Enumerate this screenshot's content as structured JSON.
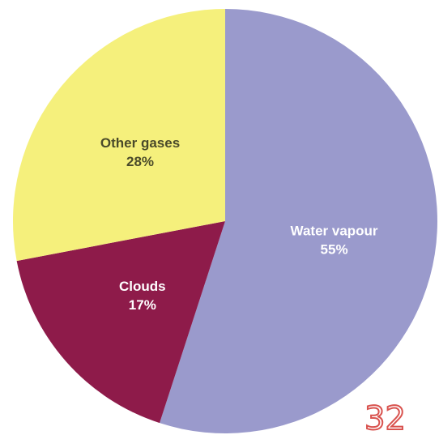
{
  "chart_data": {
    "type": "pie",
    "title": "",
    "slices": [
      {
        "label": "Water vapour",
        "value": 55,
        "value_label": "55%",
        "color": "#9a9acc",
        "text_color": "#ffffff"
      },
      {
        "label": "Clouds",
        "value": 17,
        "value_label": "17%",
        "color": "#8e1b4a",
        "text_color": "#ffffff"
      },
      {
        "label": "Other gases",
        "value": 28,
        "value_label": "28%",
        "color": "#f5f07c",
        "text_color": "#4a4a2a"
      }
    ],
    "start_angle_deg": 0,
    "direction": "clockwise",
    "legend": "none"
  },
  "watermark": {
    "text": "32",
    "color": "#d9534f"
  }
}
